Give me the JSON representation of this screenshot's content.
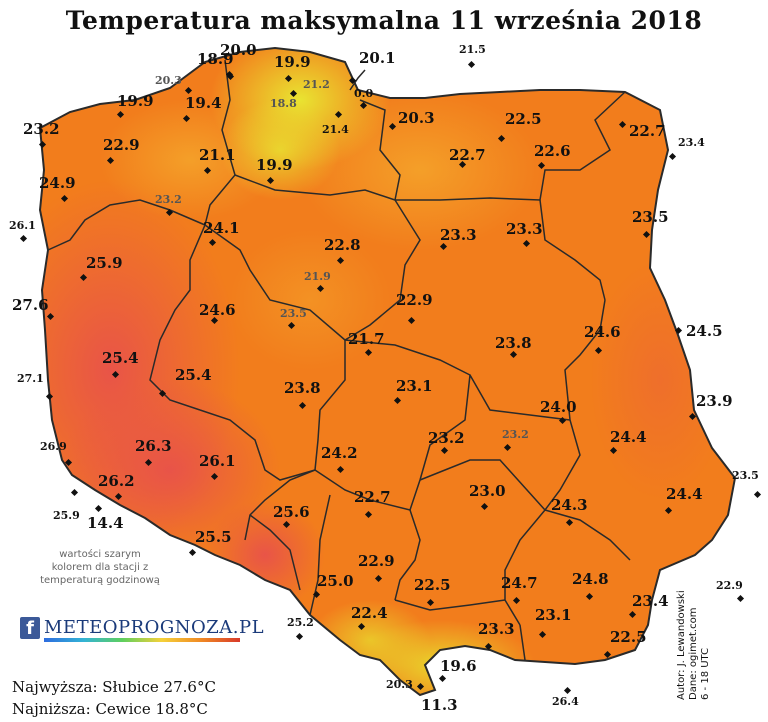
{
  "title": "Temperatura maksymalna 11 września 2018",
  "note": "wartości szarym kolorem dla stacji z temperaturą godzinową",
  "logo": {
    "icon": "facebook-icon",
    "text": "METEOPROGNOZA.PL"
  },
  "credits": [
    "Autor: J. Lewandowski",
    "Dane: ogimet.com",
    "6 - 18 UTC"
  ],
  "stats": {
    "highest": "Najwyższa: Słubice 27.6°C",
    "lowest": "Najniższa: Cewice 18.8°C"
  },
  "colors": {
    "warm": "#f0701c",
    "hot": "#e4503c",
    "cool": "#e6dc30",
    "border": "#2a2a2a"
  },
  "stations": [
    {
      "value": "20.0",
      "gray": false
    },
    {
      "value": "18.9",
      "gray": false
    },
    {
      "value": "19.9",
      "gray": false
    },
    {
      "value": "20.1",
      "gray": false
    },
    {
      "value": "21.5",
      "gray": false
    },
    {
      "value": "20.3",
      "gray": true
    },
    {
      "value": "21.2",
      "gray": true
    },
    {
      "value": "18.8",
      "gray": true
    },
    {
      "value": "0.0",
      "gray": false
    },
    {
      "value": "19.9",
      "gray": false
    },
    {
      "value": "19.4",
      "gray": false
    },
    {
      "value": "23.2",
      "gray": false
    },
    {
      "value": "21.4",
      "gray": false
    },
    {
      "value": "20.3",
      "gray": false
    },
    {
      "value": "22.5",
      "gray": false
    },
    {
      "value": "22.7",
      "gray": false
    },
    {
      "value": "23.4",
      "gray": false
    },
    {
      "value": "22.9",
      "gray": false
    },
    {
      "value": "21.1",
      "gray": false
    },
    {
      "value": "22.7",
      "gray": false
    },
    {
      "value": "22.6",
      "gray": false
    },
    {
      "value": "24.9",
      "gray": false
    },
    {
      "value": "19.9",
      "gray": false
    },
    {
      "value": "23.2",
      "gray": true
    },
    {
      "value": "26.1",
      "gray": false
    },
    {
      "value": "24.1",
      "gray": false
    },
    {
      "value": "23.5",
      "gray": false
    },
    {
      "value": "22.8",
      "gray": false
    },
    {
      "value": "23.3",
      "gray": false
    },
    {
      "value": "23.3",
      "gray": false
    },
    {
      "value": "25.9",
      "gray": false
    },
    {
      "value": "21.9",
      "gray": true
    },
    {
      "value": "27.6",
      "gray": false
    },
    {
      "value": "24.6",
      "gray": false
    },
    {
      "value": "23.5",
      "gray": true
    },
    {
      "value": "22.9",
      "gray": false
    },
    {
      "value": "24.6",
      "gray": false
    },
    {
      "value": "24.5",
      "gray": false
    },
    {
      "value": "21.7",
      "gray": false
    },
    {
      "value": "23.8",
      "gray": false
    },
    {
      "value": "25.4",
      "gray": false
    },
    {
      "value": "27.1",
      "gray": false
    },
    {
      "value": "25.4",
      "gray": false
    },
    {
      "value": "23.1",
      "gray": false
    },
    {
      "value": "23.8",
      "gray": false
    },
    {
      "value": "24.0",
      "gray": false
    },
    {
      "value": "23.9",
      "gray": false
    },
    {
      "value": "23.2",
      "gray": false
    },
    {
      "value": "23.2",
      "gray": true
    },
    {
      "value": "26.9",
      "gray": false
    },
    {
      "value": "26.3",
      "gray": false
    },
    {
      "value": "24.2",
      "gray": false
    },
    {
      "value": "24.4",
      "gray": false
    },
    {
      "value": "26.1",
      "gray": false
    },
    {
      "value": "26.2",
      "gray": false
    },
    {
      "value": "23.0",
      "gray": false
    },
    {
      "value": "22.7",
      "gray": false
    },
    {
      "value": "23.5",
      "gray": false
    },
    {
      "value": "25.9",
      "gray": false
    },
    {
      "value": "14.4",
      "gray": false
    },
    {
      "value": "24.3",
      "gray": false
    },
    {
      "value": "24.4",
      "gray": false
    },
    {
      "value": "25.6",
      "gray": false
    },
    {
      "value": "25.5",
      "gray": false
    },
    {
      "value": "22.9",
      "gray": false
    },
    {
      "value": "25.0",
      "gray": false
    },
    {
      "value": "22.5",
      "gray": false
    },
    {
      "value": "24.7",
      "gray": false
    },
    {
      "value": "24.8",
      "gray": false
    },
    {
      "value": "22.9",
      "gray": false
    },
    {
      "value": "23.4",
      "gray": false
    },
    {
      "value": "22.4",
      "gray": false
    },
    {
      "value": "25.2",
      "gray": false
    },
    {
      "value": "23.1",
      "gray": false
    },
    {
      "value": "23.3",
      "gray": false
    },
    {
      "value": "22.5",
      "gray": false
    },
    {
      "value": "19.6",
      "gray": false
    },
    {
      "value": "20.3",
      "gray": false
    },
    {
      "value": "26.4",
      "gray": false
    },
    {
      "value": "11.3",
      "gray": false
    }
  ]
}
